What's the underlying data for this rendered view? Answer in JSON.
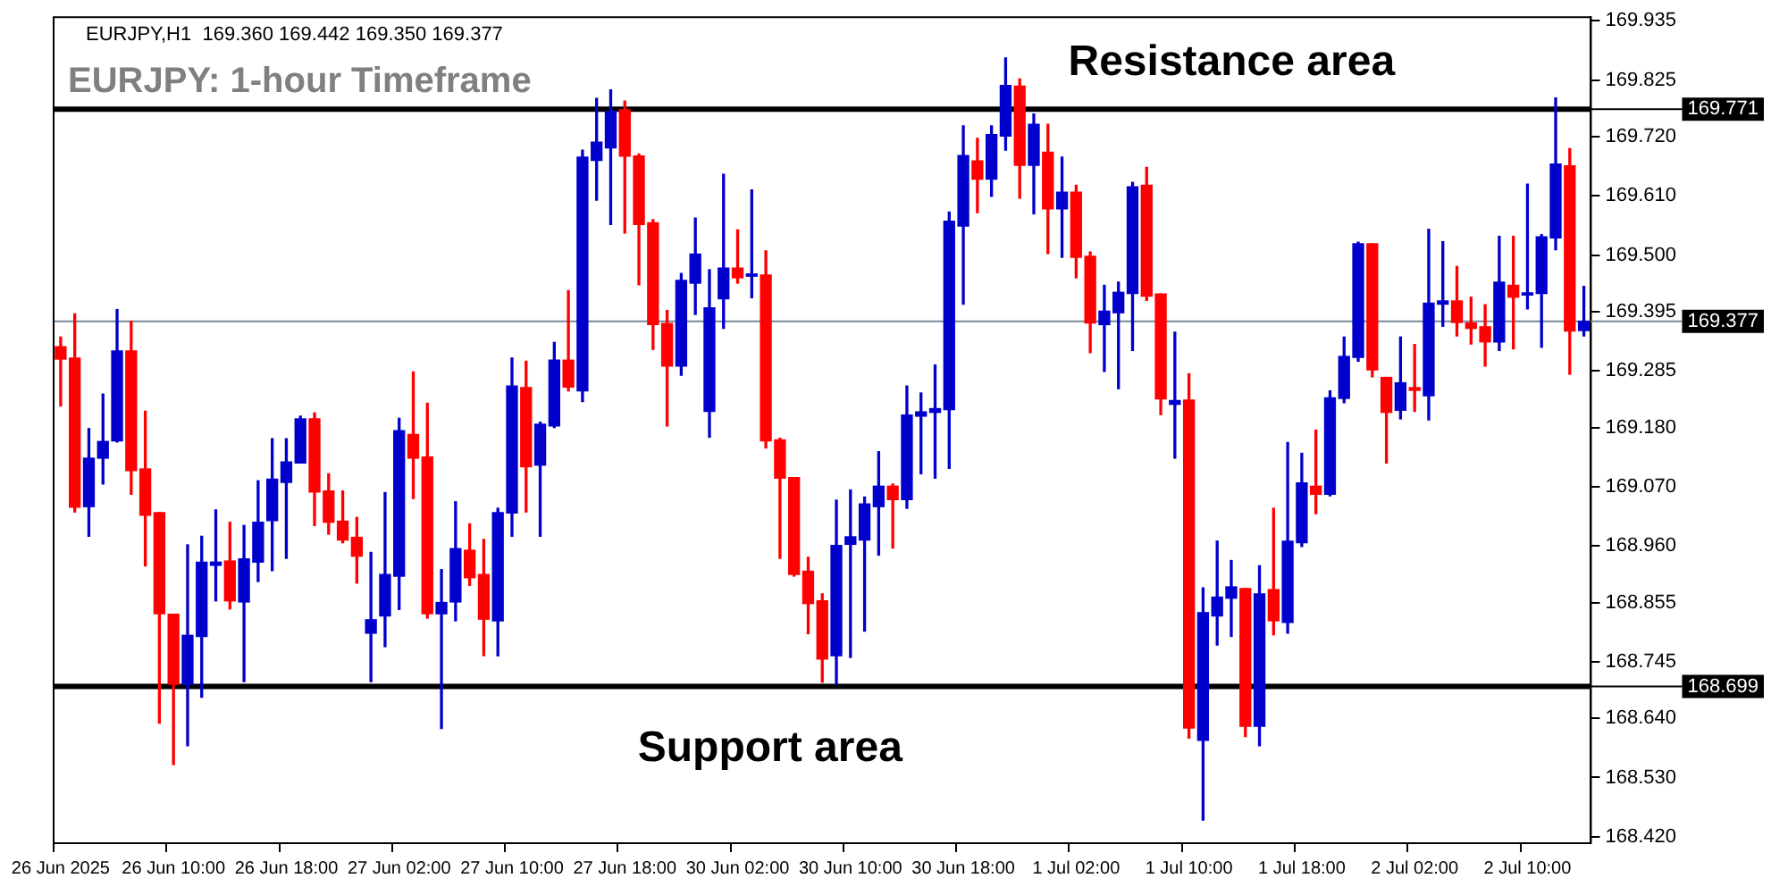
{
  "chart_data": {
    "type": "candlestick",
    "title": "EURJPY: 1-hour Timeframe",
    "subtitle": "EURJPY,H1  169.360 169.442 169.350 169.377",
    "categories": [
      "26 Jun 2025",
      null,
      null,
      null,
      null,
      null,
      null,
      null,
      "26 Jun 10:00",
      null,
      null,
      null,
      null,
      null,
      null,
      null,
      "26 Jun 18:00",
      null,
      null,
      null,
      null,
      null,
      null,
      null,
      "27 Jun 02:00",
      null,
      null,
      null,
      null,
      null,
      null,
      null,
      "27 Jun 10:00",
      null,
      null,
      null,
      null,
      null,
      null,
      null,
      "27 Jun 18:00",
      null,
      null,
      null,
      null,
      null,
      null,
      null,
      "30 Jun 02:00",
      null,
      null,
      null,
      null,
      null,
      null,
      null,
      "30 Jun 10:00",
      null,
      null,
      null,
      null,
      null,
      null,
      null,
      "30 Jun 18:00",
      null,
      null,
      null,
      null,
      null,
      null,
      null,
      "1 Jul 02:00",
      null,
      null,
      null,
      null,
      null,
      null,
      null,
      "1 Jul 10:00",
      null,
      null,
      null,
      null,
      null,
      null,
      null,
      "1 Jul 18:00",
      null,
      null,
      null,
      null,
      null,
      null,
      null,
      "2 Jul 02:00",
      null,
      null,
      null,
      null,
      null,
      null,
      null,
      "2 Jul 10:00",
      null,
      null,
      null,
      null
    ],
    "ohlc": [
      [
        169.33,
        169.348,
        169.22,
        169.307
      ],
      [
        169.309,
        169.391,
        169.023,
        169.032
      ],
      [
        169.033,
        169.178,
        168.978,
        169.123
      ],
      [
        169.123,
        169.242,
        169.075,
        169.154
      ],
      [
        169.155,
        169.399,
        169.153,
        169.322
      ],
      [
        169.322,
        169.377,
        169.056,
        169.1
      ],
      [
        169.103,
        169.21,
        168.923,
        169.017
      ],
      [
        169.022,
        169.022,
        168.631,
        168.834
      ],
      [
        168.833,
        168.833,
        168.554,
        168.703
      ],
      [
        168.703,
        168.962,
        168.589,
        168.794
      ],
      [
        168.792,
        168.978,
        168.679,
        168.93
      ],
      [
        168.924,
        169.027,
        168.858,
        168.93
      ],
      [
        168.932,
        169.004,
        168.843,
        168.858
      ],
      [
        168.856,
        168.998,
        168.708,
        168.936
      ],
      [
        168.93,
        169.081,
        168.894,
        169.004
      ],
      [
        169.007,
        169.159,
        168.914,
        169.084
      ],
      [
        169.078,
        169.159,
        168.937,
        169.116
      ],
      [
        169.114,
        169.201,
        169.114,
        169.196
      ],
      [
        169.196,
        169.207,
        168.998,
        169.06
      ],
      [
        169.062,
        169.094,
        168.982,
        169.004
      ],
      [
        169.006,
        169.062,
        168.966,
        168.971
      ],
      [
        168.976,
        169.013,
        168.891,
        168.941
      ],
      [
        168.798,
        168.948,
        168.708,
        168.823
      ],
      [
        168.83,
        169.059,
        168.773,
        168.907
      ],
      [
        168.904,
        169.197,
        168.842,
        169.174
      ],
      [
        169.167,
        169.283,
        169.048,
        169.123
      ],
      [
        169.125,
        169.225,
        168.826,
        168.834
      ],
      [
        168.834,
        168.916,
        168.621,
        168.855
      ],
      [
        168.856,
        169.042,
        168.821,
        168.955
      ],
      [
        168.952,
        169.001,
        168.887,
        168.901
      ],
      [
        168.907,
        168.972,
        168.756,
        168.824
      ],
      [
        168.821,
        169.03,
        168.756,
        169.022
      ],
      [
        169.021,
        169.309,
        168.978,
        169.257
      ],
      [
        169.254,
        169.303,
        169.023,
        169.107
      ],
      [
        169.11,
        169.19,
        168.978,
        169.186
      ],
      [
        169.183,
        169.338,
        169.18,
        169.305
      ],
      [
        169.305,
        169.434,
        169.248,
        169.255
      ],
      [
        169.248,
        169.695,
        169.228,
        169.682
      ],
      [
        169.676,
        169.791,
        169.602,
        169.71
      ],
      [
        169.699,
        169.807,
        169.557,
        169.767
      ],
      [
        169.77,
        169.786,
        169.541,
        169.684
      ],
      [
        169.684,
        169.688,
        169.445,
        169.557
      ],
      [
        169.56,
        169.566,
        169.325,
        169.371
      ],
      [
        169.373,
        169.397,
        169.183,
        169.294
      ],
      [
        169.294,
        169.466,
        169.277,
        169.453
      ],
      [
        169.448,
        169.569,
        169.39,
        169.502
      ],
      [
        169.21,
        169.473,
        169.162,
        169.402
      ],
      [
        169.419,
        169.65,
        169.364,
        169.476
      ],
      [
        169.476,
        169.547,
        169.448,
        169.458
      ],
      [
        169.461,
        169.621,
        169.421,
        169.465
      ],
      [
        169.463,
        169.508,
        169.142,
        169.155
      ],
      [
        169.157,
        169.16,
        168.937,
        169.086
      ],
      [
        169.087,
        169.087,
        168.904,
        168.907
      ],
      [
        168.913,
        168.939,
        168.797,
        168.853
      ],
      [
        168.858,
        168.871,
        168.707,
        168.75
      ],
      [
        168.756,
        169.045,
        168.703,
        168.961
      ],
      [
        168.963,
        169.064,
        168.753,
        168.977
      ],
      [
        168.971,
        169.051,
        168.802,
        169.038
      ],
      [
        169.033,
        169.135,
        168.943,
        169.071
      ],
      [
        169.071,
        169.075,
        168.956,
        169.046
      ],
      [
        169.046,
        169.257,
        169.03,
        169.203
      ],
      [
        169.201,
        169.244,
        169.094,
        169.209
      ],
      [
        169.208,
        169.296,
        169.086,
        169.215
      ],
      [
        169.213,
        169.58,
        169.104,
        169.563
      ],
      [
        169.554,
        169.74,
        169.409,
        169.685
      ],
      [
        169.675,
        169.717,
        169.579,
        169.641
      ],
      [
        169.641,
        169.74,
        169.609,
        169.724
      ],
      [
        169.721,
        169.866,
        169.695,
        169.815
      ],
      [
        169.814,
        169.827,
        169.606,
        169.667
      ],
      [
        169.667,
        169.762,
        169.577,
        169.743
      ],
      [
        169.691,
        169.743,
        169.503,
        169.586
      ],
      [
        169.586,
        169.682,
        169.496,
        169.617
      ],
      [
        169.617,
        169.63,
        169.458,
        169.496
      ],
      [
        169.498,
        169.506,
        169.319,
        169.374
      ],
      [
        169.371,
        169.444,
        169.284,
        169.396
      ],
      [
        169.393,
        169.45,
        169.252,
        169.431
      ],
      [
        169.429,
        169.635,
        169.323,
        169.627
      ],
      [
        169.63,
        169.663,
        169.416,
        169.424
      ],
      [
        169.428,
        169.428,
        169.204,
        169.233
      ],
      [
        169.223,
        169.357,
        169.123,
        169.23
      ],
      [
        169.231,
        169.28,
        168.603,
        168.622
      ],
      [
        168.599,
        168.882,
        168.451,
        168.836
      ],
      [
        168.83,
        168.969,
        168.776,
        168.865
      ],
      [
        168.863,
        168.933,
        168.792,
        168.884
      ],
      [
        168.881,
        168.881,
        168.606,
        168.625
      ],
      [
        168.625,
        168.923,
        168.589,
        168.871
      ],
      [
        168.879,
        169.03,
        168.795,
        168.821
      ],
      [
        168.818,
        169.152,
        168.798,
        168.969
      ],
      [
        168.966,
        169.132,
        168.959,
        169.077
      ],
      [
        169.071,
        169.175,
        169.02,
        169.056
      ],
      [
        169.056,
        169.248,
        169.053,
        169.235
      ],
      [
        169.234,
        169.348,
        169.226,
        169.312
      ],
      [
        169.31,
        169.524,
        169.303,
        169.521
      ],
      [
        169.521,
        169.521,
        169.274,
        169.287
      ],
      [
        169.273,
        169.273,
        169.114,
        169.208
      ],
      [
        169.212,
        169.348,
        169.196,
        169.263
      ],
      [
        169.254,
        169.334,
        169.21,
        169.249
      ],
      [
        169.239,
        169.548,
        169.194,
        169.411
      ],
      [
        169.409,
        169.525,
        169.368,
        169.415
      ],
      [
        169.415,
        169.479,
        169.35,
        169.375
      ],
      [
        169.374,
        169.422,
        169.335,
        169.364
      ],
      [
        169.367,
        169.408,
        169.294,
        169.339
      ],
      [
        169.339,
        169.535,
        169.323,
        169.45
      ],
      [
        169.444,
        169.535,
        169.326,
        169.422
      ],
      [
        169.426,
        169.632,
        169.4,
        169.43
      ],
      [
        169.429,
        169.538,
        169.329,
        169.534
      ],
      [
        169.532,
        169.792,
        169.51,
        169.669
      ],
      [
        169.666,
        169.698,
        169.279,
        169.359
      ],
      [
        169.36,
        169.442,
        169.35,
        169.377
      ]
    ],
    "colors": [
      "#ff0000",
      "#ff0000",
      "#0000cc",
      "#0000cc",
      "#0000cc",
      "#ff0000",
      "#ff0000",
      "#ff0000",
      "#ff0000",
      "#0000cc",
      "#0000cc",
      "#0000cc",
      "#ff0000",
      "#0000cc",
      "#0000cc",
      "#0000cc",
      "#0000cc",
      "#0000cc",
      "#ff0000",
      "#ff0000",
      "#ff0000",
      "#ff0000",
      "#0000cc",
      "#0000cc",
      "#0000cc",
      "#ff0000",
      "#ff0000",
      "#0000cc",
      "#0000cc",
      "#ff0000",
      "#ff0000",
      "#0000cc",
      "#0000cc",
      "#ff0000",
      "#0000cc",
      "#0000cc",
      "#ff0000",
      "#0000cc",
      "#0000cc",
      "#0000cc",
      "#ff0000",
      "#ff0000",
      "#ff0000",
      "#ff0000",
      "#0000cc",
      "#0000cc",
      "#0000cc",
      "#0000cc",
      "#ff0000",
      "#0000cc",
      "#ff0000",
      "#ff0000",
      "#ff0000",
      "#ff0000",
      "#ff0000",
      "#0000cc",
      "#0000cc",
      "#0000cc",
      "#0000cc",
      "#ff0000",
      "#0000cc",
      "#0000cc",
      "#0000cc",
      "#0000cc",
      "#0000cc",
      "#ff0000",
      "#0000cc",
      "#0000cc",
      "#ff0000",
      "#0000cc",
      "#ff0000",
      "#0000cc",
      "#ff0000",
      "#ff0000",
      "#0000cc",
      "#0000cc",
      "#0000cc",
      "#ff0000",
      "#ff0000",
      "#0000cc",
      "#ff0000",
      "#0000cc",
      "#0000cc",
      "#0000cc",
      "#ff0000",
      "#0000cc",
      "#ff0000",
      "#0000cc",
      "#0000cc",
      "#ff0000",
      "#0000cc",
      "#0000cc",
      "#0000cc",
      "#ff0000",
      "#ff0000",
      "#0000cc",
      "#ff0000",
      "#0000cc",
      "#0000cc",
      "#ff0000",
      "#ff0000",
      "#ff0000",
      "#0000cc",
      "#ff0000",
      "#0000cc",
      "#0000cc",
      "#0000cc",
      "#ff0000",
      "#0000cc"
    ],
    "ylim": [
      168.408,
      169.942
    ],
    "yticks": [
      169.935,
      169.825,
      {
        "value": 169.72,
        "label": "169.720"
      },
      {
        "value": 169.61,
        "label": "169.610"
      },
      {
        "value": 169.5,
        "label": "169.500"
      },
      169.395,
      169.285,
      {
        "value": 169.18,
        "label": "169.180"
      },
      {
        "value": 169.07,
        "label": "169.070"
      },
      {
        "value": 168.96,
        "label": "168.960"
      },
      168.855,
      168.745,
      {
        "value": 168.64,
        "label": "168.640"
      },
      {
        "value": 168.53,
        "label": "168.530"
      },
      {
        "value": 168.42,
        "label": "168.420"
      }
    ],
    "ref_lines": [
      {
        "axis": "y",
        "value": 169.771,
        "label": "169.771",
        "color": "#000000"
      },
      {
        "axis": "y",
        "value": 168.699,
        "label": "168.699",
        "color": "#000000"
      },
      {
        "axis": "y",
        "value": 169.377,
        "label": "169.377",
        "color": "#778899"
      }
    ],
    "annotations": [
      "Resistance area",
      "Support area"
    ]
  }
}
